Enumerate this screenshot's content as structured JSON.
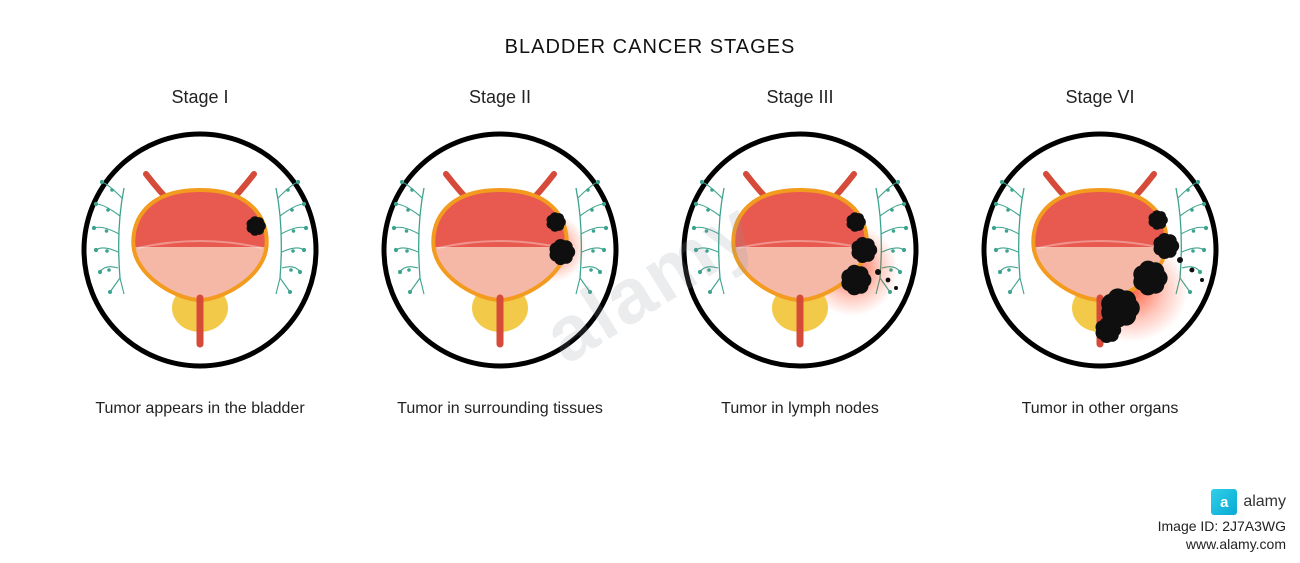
{
  "title": "BLADDER CANCER STAGES",
  "colors": {
    "circle_stroke": "#000000",
    "bladder_upper": "#e85a4f",
    "bladder_lower": "#f5b8a6",
    "bladder_outline": "#f29b1e",
    "ureter": "#d64a3a",
    "prostate": "#f3c94a",
    "lymph": "#3da38e",
    "tumor": "#0f0f0f",
    "glow": "#ff2a00"
  },
  "circle": {
    "stroke_width": 5,
    "diameter": 240
  },
  "stages": [
    {
      "label": "Stage I",
      "desc": "Tumor appears in the bladder",
      "tumor_level": 1
    },
    {
      "label": "Stage II",
      "desc": "Tumor in surrounding tissues",
      "tumor_level": 2
    },
    {
      "label": "Stage III",
      "desc": "Tumor in lymph nodes",
      "tumor_level": 3
    },
    {
      "label": "Stage VI",
      "desc": "Tumor in other organs",
      "tumor_level": 4
    }
  ],
  "watermark": {
    "diag": "alamy",
    "logo_letter": "a",
    "logo_text": "alamy",
    "credit_line": "Image ID: 2J7A3WG\nwww.alamy.com"
  }
}
